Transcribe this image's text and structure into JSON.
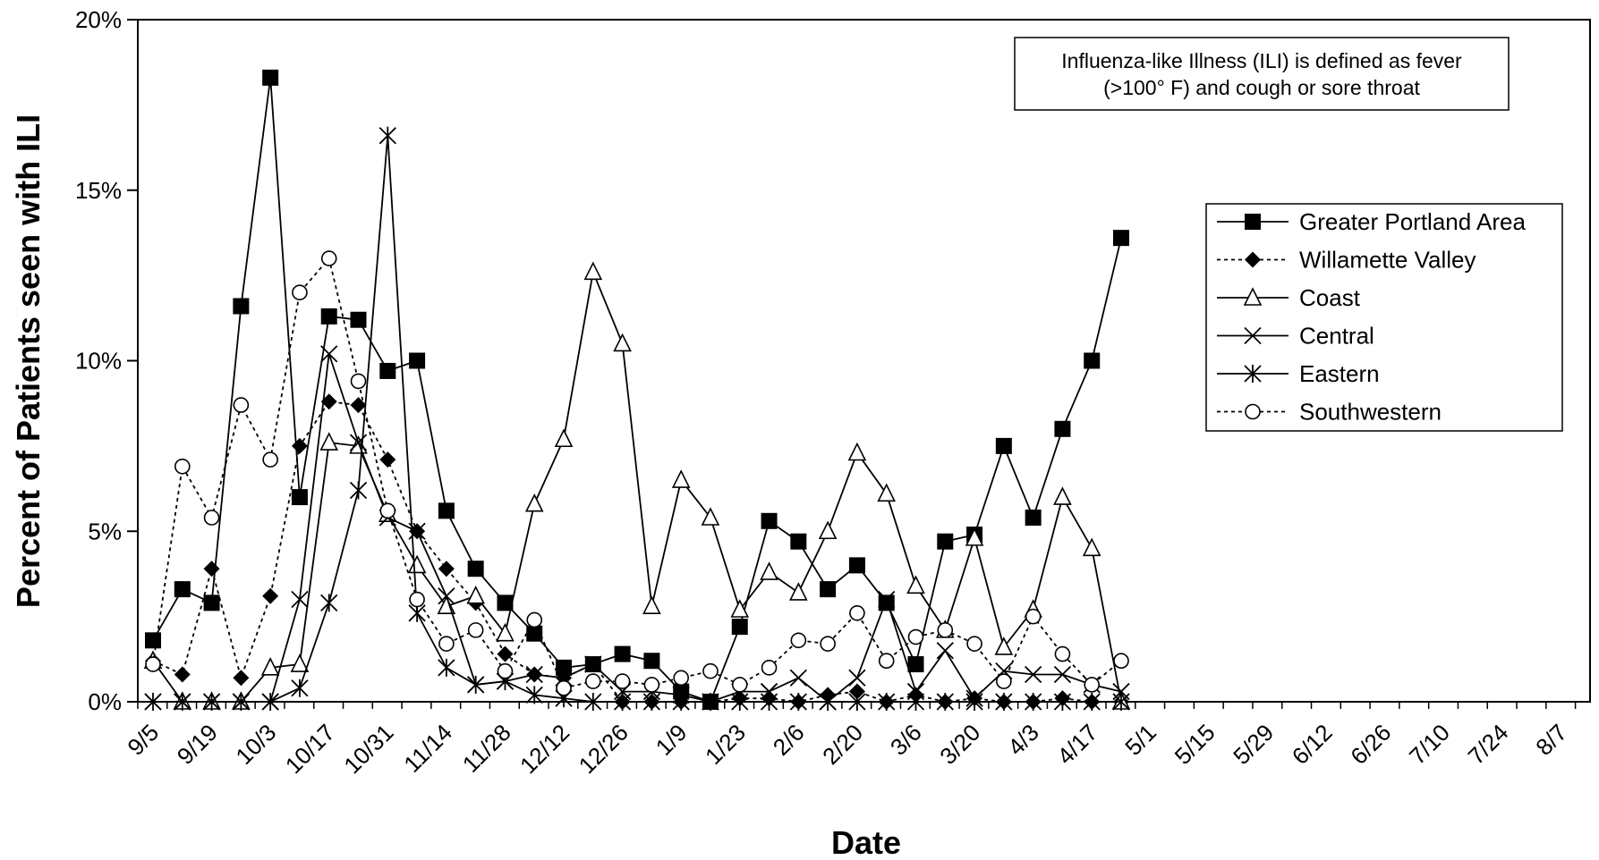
{
  "chart_data": {
    "type": "line",
    "title": "",
    "xlabel": "Date",
    "ylabel": "Percent of Patients seen with ILI",
    "ylim": [
      0,
      20
    ],
    "y_ticks": [
      "0%",
      "5%",
      "10%",
      "15%",
      "20%"
    ],
    "x_tick_labels": [
      "9/5",
      "9/19",
      "10/3",
      "10/17",
      "10/31",
      "11/14",
      "11/28",
      "12/12",
      "12/26",
      "1/9",
      "1/23",
      "2/6",
      "2/20",
      "3/6",
      "3/20",
      "4/3",
      "4/17",
      "5/1",
      "5/15",
      "5/29",
      "6/12",
      "6/26",
      "7/10",
      "7/24",
      "8/7"
    ],
    "note": "Influenza-like Illness (ILI) is defined as fever (>100° F) and cough or sore throat",
    "note_lines": [
      "Influenza-like Illness (ILI) is defined as fever",
      "(>100° F) and cough or sore throat"
    ],
    "legend_position": "right",
    "series": [
      {
        "name": "Greater Portland Area",
        "marker": "square-filled",
        "dash": "solid",
        "values": [
          1.8,
          3.3,
          2.9,
          11.6,
          18.3,
          6.0,
          11.3,
          11.2,
          9.7,
          10.0,
          5.6,
          3.9,
          2.9,
          2.0,
          1.0,
          1.1,
          1.4,
          1.2,
          0.3,
          0.0,
          2.2,
          5.3,
          4.7,
          3.3,
          4.0,
          2.9,
          1.1,
          4.7,
          4.9,
          7.5,
          5.4,
          8.0,
          10.0,
          13.6
        ]
      },
      {
        "name": "Willamette Valley",
        "marker": "diamond-filled",
        "dash": "dotted",
        "values": [
          1.2,
          0.8,
          3.9,
          0.7,
          3.1,
          7.5,
          8.8,
          8.7,
          7.1,
          5.0,
          3.9,
          2.9,
          1.4,
          0.8,
          0.7,
          1.1,
          0.0,
          0.0,
          0.0,
          0.0,
          0.1,
          0.1,
          0.0,
          0.2,
          0.3,
          0.0,
          0.2,
          0.0,
          0.1,
          0.0,
          0.0,
          0.1,
          0.0,
          0.0
        ]
      },
      {
        "name": "Coast",
        "marker": "triangle-open",
        "dash": "solid",
        "values": [
          1.2,
          0.0,
          0.0,
          0.0,
          1.0,
          1.1,
          7.6,
          7.5,
          5.5,
          4.0,
          2.8,
          3.1,
          2.0,
          5.8,
          7.7,
          12.6,
          10.5,
          2.8,
          6.5,
          5.4,
          2.7,
          3.8,
          3.2,
          5.0,
          7.3,
          6.1,
          3.4,
          2.1,
          4.8,
          1.6,
          2.7,
          6.0,
          4.5,
          0.0
        ]
      },
      {
        "name": "Central",
        "marker": "x",
        "dash": "solid",
        "values": [
          0.0,
          0.0,
          0.0,
          0.0,
          0.0,
          3.0,
          10.2,
          7.6,
          5.4,
          5.0,
          3.1,
          0.5,
          0.6,
          0.8,
          0.7,
          1.1,
          0.3,
          0.3,
          0.2,
          0.0,
          0.3,
          0.3,
          0.7,
          0.0,
          0.7,
          3.0,
          0.3,
          1.5,
          0.1,
          0.9,
          0.8,
          0.8,
          0.5,
          0.3
        ]
      },
      {
        "name": "Eastern",
        "marker": "asterisk",
        "dash": "solid",
        "values": [
          0.0,
          0.0,
          0.0,
          0.0,
          0.0,
          0.4,
          2.9,
          6.2,
          16.6,
          2.6,
          1.0,
          0.5,
          0.6,
          0.2,
          0.1,
          0.0,
          0.0,
          0.0,
          0.0,
          0.0,
          0.0,
          0.0,
          0.0,
          0.0,
          0.0,
          0.0,
          0.0,
          0.0,
          0.0,
          0.0,
          0.0,
          0.0,
          0.0,
          0.0
        ]
      },
      {
        "name": "Southwestern",
        "marker": "circle-open",
        "dash": "dotted",
        "values": [
          1.1,
          6.9,
          5.4,
          8.7,
          7.1,
          12.0,
          13.0,
          9.4,
          5.6,
          3.0,
          1.7,
          2.1,
          0.9,
          2.4,
          0.4,
          0.6,
          0.6,
          0.5,
          0.7,
          0.9,
          0.5,
          1.0,
          1.8,
          1.7,
          2.6,
          1.2,
          1.9,
          2.1,
          1.7,
          0.6,
          2.5,
          1.4,
          0.5,
          1.2
        ]
      }
    ]
  }
}
